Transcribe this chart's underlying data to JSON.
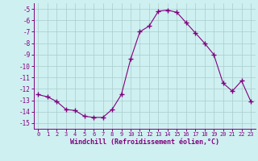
{
  "x": [
    0,
    1,
    2,
    3,
    4,
    5,
    6,
    7,
    8,
    9,
    10,
    11,
    12,
    13,
    14,
    15,
    16,
    17,
    18,
    19,
    20,
    21,
    22,
    23
  ],
  "y": [
    -12.5,
    -12.7,
    -13.1,
    -13.8,
    -13.9,
    -14.4,
    -14.5,
    -14.5,
    -13.8,
    -12.5,
    -9.4,
    -7.0,
    -6.5,
    -5.2,
    -5.1,
    -5.3,
    -6.2,
    -7.1,
    -8.0,
    -9.0,
    -11.5,
    -12.2,
    -11.3,
    -13.1
  ],
  "line_color": "#800080",
  "marker": "+",
  "marker_size": 4,
  "marker_lw": 1.0,
  "bg_color": "#cff0f0",
  "grid_color": "#aacccc",
  "xlabel": "Windchill (Refroidissement éolien,°C)",
  "xlabel_color": "#800080",
  "tick_color": "#800080",
  "spine_color": "#800080",
  "ylim": [
    -15.5,
    -4.5
  ],
  "xlim": [
    -0.5,
    23.5
  ],
  "yticks": [
    -15,
    -14,
    -13,
    -12,
    -11,
    -10,
    -9,
    -8,
    -7,
    -6,
    -5
  ],
  "xticks": [
    0,
    1,
    2,
    3,
    4,
    5,
    6,
    7,
    8,
    9,
    10,
    11,
    12,
    13,
    14,
    15,
    16,
    17,
    18,
    19,
    20,
    21,
    22,
    23
  ],
  "ytick_labels": [
    "-15",
    "-14",
    "-13",
    "-12",
    "-11",
    "-10",
    "-9",
    "-8",
    "-7",
    "-6",
    "-5"
  ],
  "xtick_labels": [
    "0",
    "1",
    "2",
    "3",
    "4",
    "5",
    "6",
    "7",
    "8",
    "9",
    "10",
    "11",
    "12",
    "13",
    "14",
    "15",
    "16",
    "17",
    "18",
    "19",
    "20",
    "21",
    "22",
    "23"
  ]
}
